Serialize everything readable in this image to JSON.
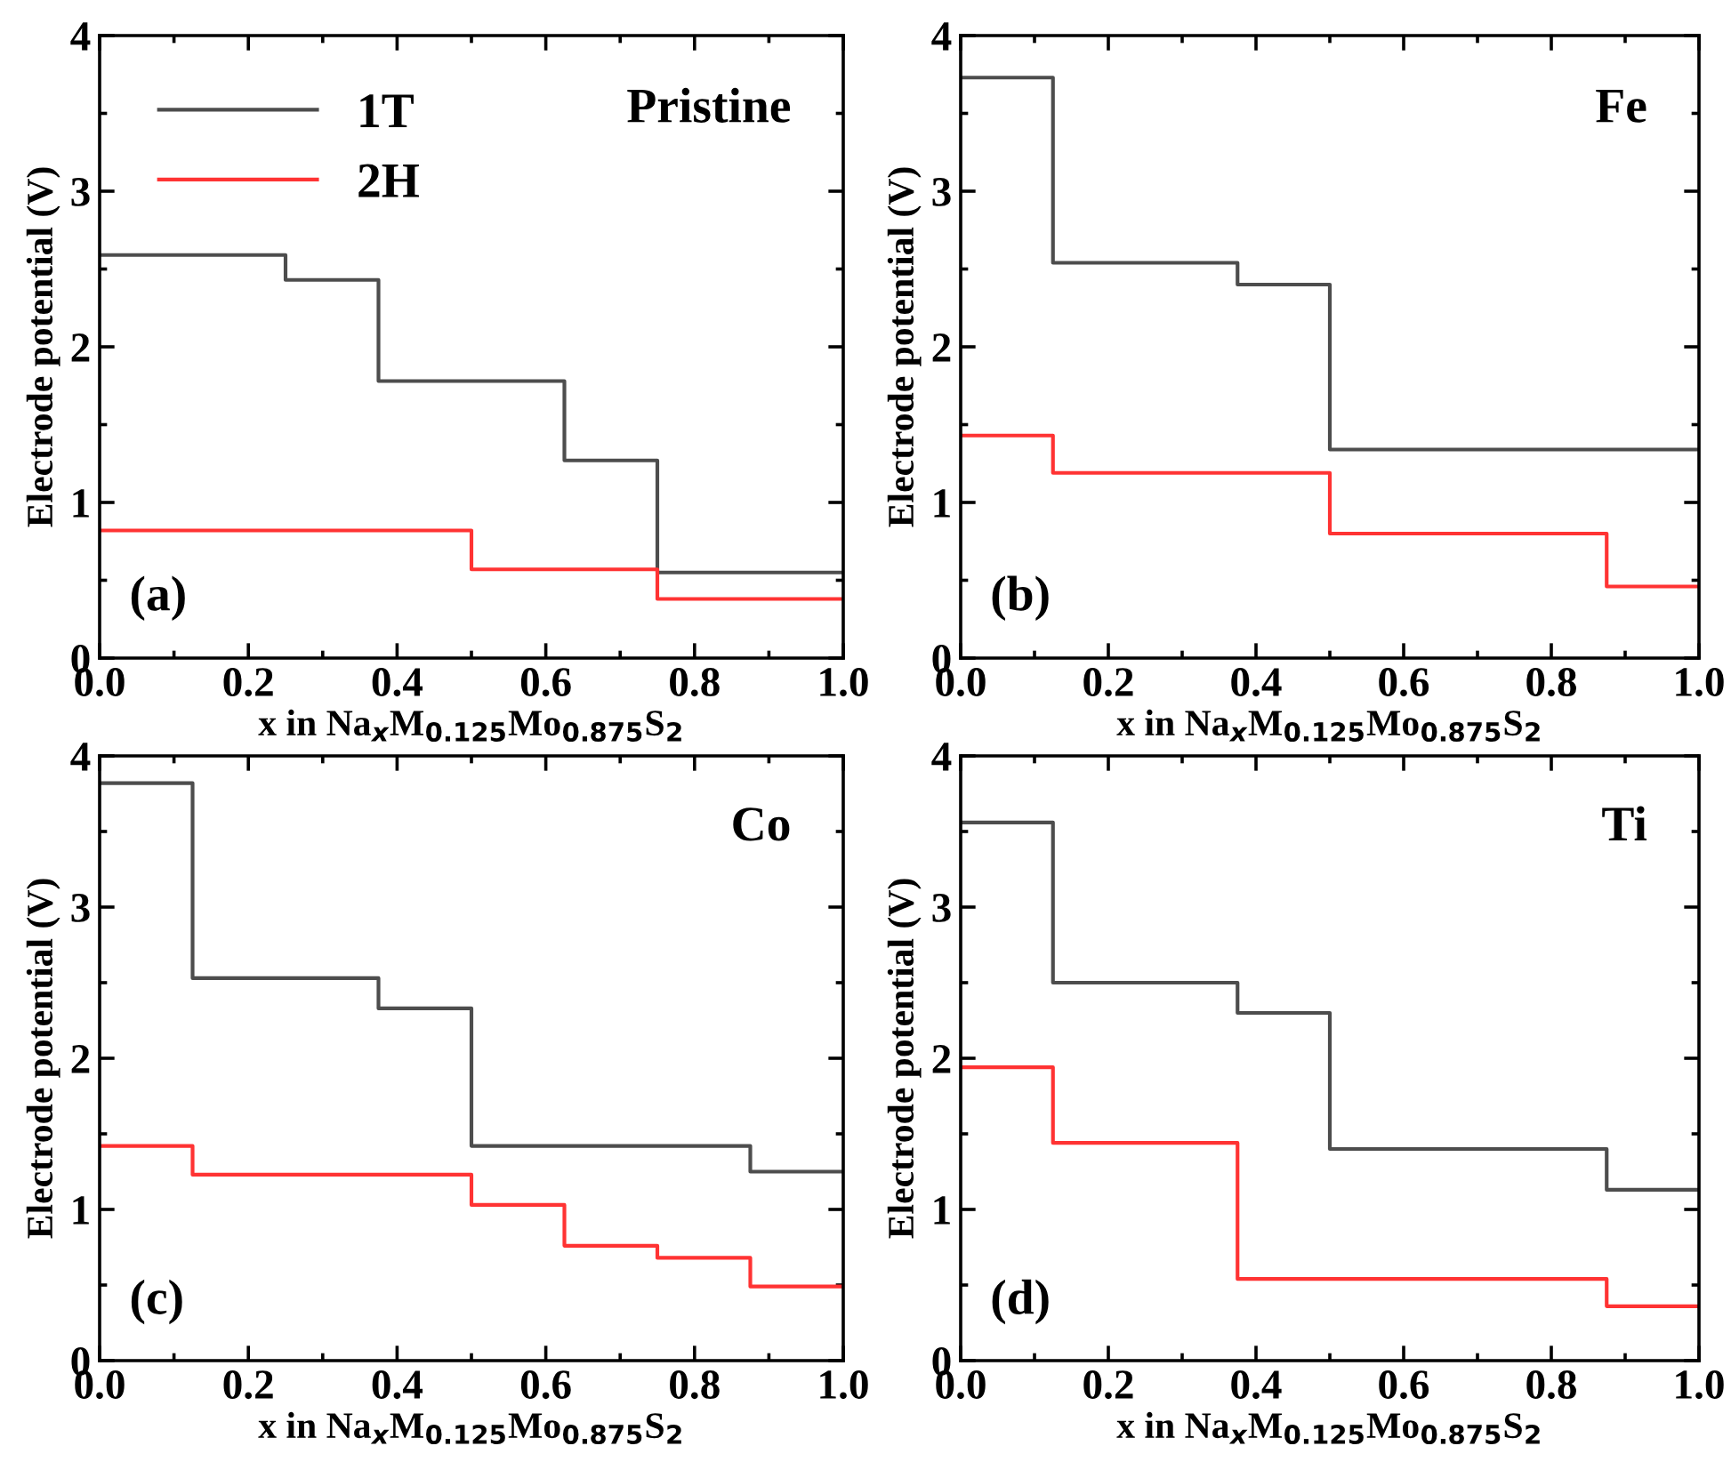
{
  "chart_data": [
    {
      "type": "step",
      "xlabel": "x in Na$_{x}$M$_{0.125}$Mo$_{0.875}$S$_{2}$",
      "ylabel": "Electrode potential (V)",
      "annotations": [
        "Pristine",
        "(a)"
      ],
      "xlim": [
        0,
        1
      ],
      "ylim": [
        0,
        4
      ],
      "xticks": [
        {
          "value": 0,
          "label": "0.0"
        },
        {
          "value": 0.2,
          "label": "0.2"
        },
        {
          "value": 0.4,
          "label": "0.4"
        },
        {
          "value": 0.6,
          "label": "0.6"
        },
        {
          "value": 0.8,
          "label": "0.8"
        },
        {
          "value": 1,
          "label": "1.0"
        }
      ],
      "yticks": [
        0,
        1,
        2,
        3,
        4
      ],
      "legend": "top left",
      "grid": false,
      "series": [
        {
          "name": "1T",
          "color": "#4d4d4d",
          "x": [
            0,
            0.25,
            0.375,
            0.625,
            0.75,
            1
          ],
          "values": [
            2.59,
            2.43,
            1.78,
            1.27,
            0.55,
            0.55
          ]
        },
        {
          "name": "2H",
          "color": "#ff3333",
          "x": [
            0,
            0.5,
            0.75,
            1
          ],
          "values": [
            0.82,
            0.57,
            0.38,
            0.38
          ]
        }
      ]
    },
    {
      "type": "step",
      "xlabel": "x in Na$_{x}$M$_{0.125}$Mo$_{0.875}$S$_{2}$",
      "ylabel": "Electrode potential (V)",
      "annotations": [
        "Fe",
        "(b)"
      ],
      "xlim": [
        0,
        1
      ],
      "ylim": [
        0,
        4
      ],
      "xticks": [
        {
          "value": 0,
          "label": "0.0"
        },
        {
          "value": 0.2,
          "label": "0.2"
        },
        {
          "value": 0.4,
          "label": "0.4"
        },
        {
          "value": 0.6,
          "label": "0.6"
        },
        {
          "value": 0.8,
          "label": "0.8"
        },
        {
          "value": 1,
          "label": "1.0"
        }
      ],
      "yticks": [
        0,
        1,
        2,
        3,
        4
      ],
      "grid": false,
      "series": [
        {
          "color": "#4d4d4d",
          "x": [
            0,
            0.125,
            0.375,
            0.5,
            1
          ],
          "values": [
            3.73,
            2.54,
            2.4,
            1.34,
            1.34
          ]
        },
        {
          "color": "#ff3333",
          "x": [
            0,
            0.125,
            0.5,
            0.875,
            1
          ],
          "values": [
            1.43,
            1.19,
            0.8,
            0.46,
            0.46
          ]
        }
      ]
    },
    {
      "type": "step",
      "xlabel": "x in Na$_{x}$M$_{0.125}$Mo$_{0.875}$S$_{2}$",
      "ylabel": "Electrode potential (V)",
      "annotations": [
        "Co",
        "(c)"
      ],
      "xlim": [
        0,
        1
      ],
      "ylim": [
        0,
        4
      ],
      "xticks": [
        {
          "value": 0,
          "label": "0.0"
        },
        {
          "value": 0.2,
          "label": "0.2"
        },
        {
          "value": 0.4,
          "label": "0.4"
        },
        {
          "value": 0.6,
          "label": "0.6"
        },
        {
          "value": 0.8,
          "label": "0.8"
        },
        {
          "value": 1,
          "label": "1.0"
        }
      ],
      "yticks": [
        0,
        1,
        2,
        3,
        4
      ],
      "grid": false,
      "series": [
        {
          "color": "#4d4d4d",
          "x": [
            0,
            0.125,
            0.375,
            0.5,
            0.875,
            1
          ],
          "values": [
            3.82,
            2.53,
            2.33,
            1.42,
            1.25,
            1.25
          ]
        },
        {
          "color": "#ff3333",
          "x": [
            0,
            0.125,
            0.5,
            0.625,
            0.75,
            0.875,
            1
          ],
          "values": [
            1.42,
            1.23,
            1.03,
            0.76,
            0.68,
            0.49,
            0.49
          ]
        }
      ]
    },
    {
      "type": "step",
      "xlabel": "x in Na$_{x}$M$_{0.125}$Mo$_{0.875}$S$_{2}$",
      "ylabel": "Electrode potential (V)",
      "annotations": [
        "Ti",
        "(d)"
      ],
      "xlim": [
        0,
        1
      ],
      "ylim": [
        0,
        4
      ],
      "xticks": [
        {
          "value": 0,
          "label": "0.0"
        },
        {
          "value": 0.2,
          "label": "0.2"
        },
        {
          "value": 0.4,
          "label": "0.4"
        },
        {
          "value": 0.6,
          "label": "0.6"
        },
        {
          "value": 0.8,
          "label": "0.8"
        },
        {
          "value": 1,
          "label": "1.0"
        }
      ],
      "yticks": [
        0,
        1,
        2,
        3,
        4
      ],
      "grid": false,
      "series": [
        {
          "color": "#4d4d4d",
          "x": [
            0,
            0.125,
            0.375,
            0.5,
            0.875,
            1
          ],
          "values": [
            3.56,
            2.5,
            2.3,
            1.4,
            1.13,
            1.13
          ]
        },
        {
          "color": "#ff3333",
          "x": [
            0,
            0.125,
            0.375,
            0.875,
            1
          ],
          "values": [
            1.94,
            1.44,
            0.54,
            0.36,
            0.36
          ]
        }
      ]
    }
  ]
}
